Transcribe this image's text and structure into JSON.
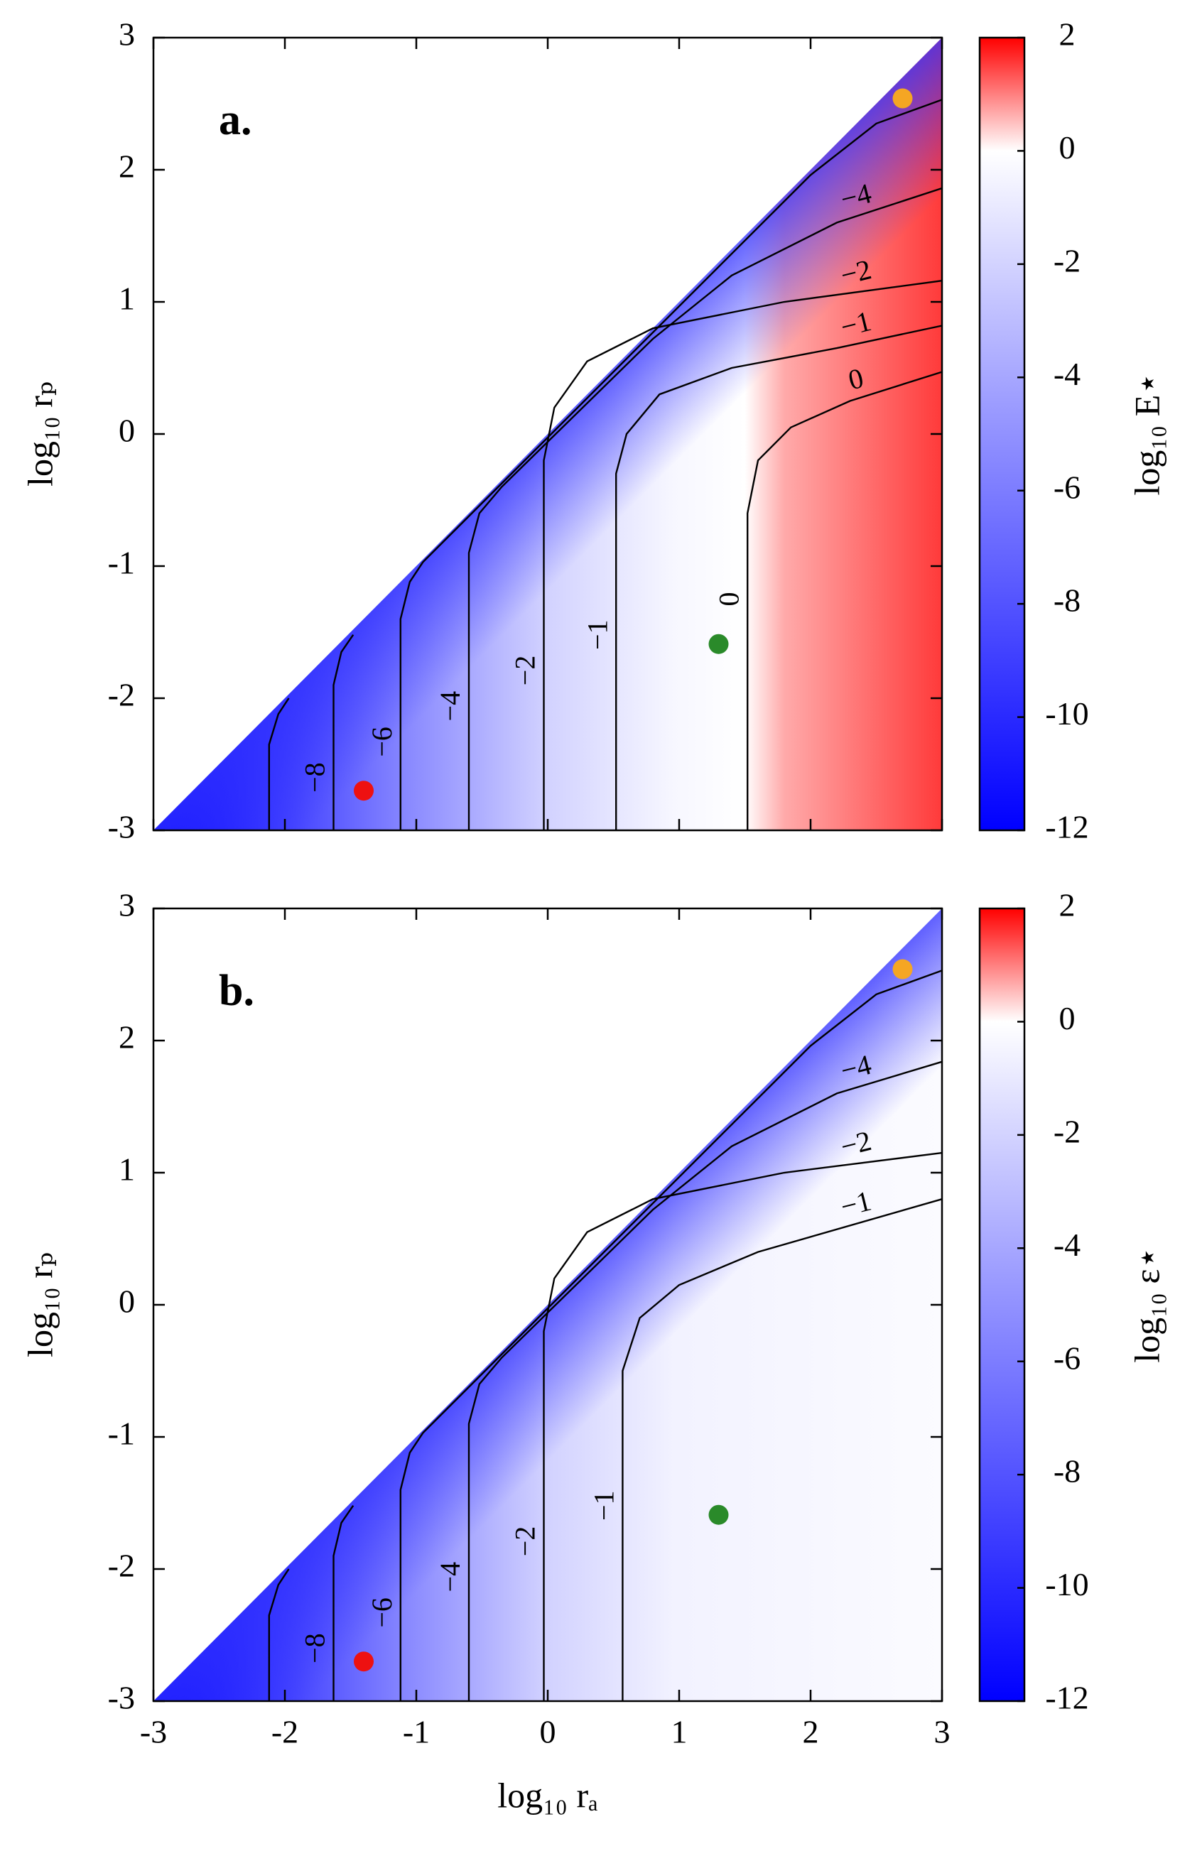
{
  "chart_data": [
    {
      "type": "heatmap",
      "panel_label": "a.",
      "ylabel": "log₁₀ rₚ",
      "show_xtick_labels": false,
      "xlim": [
        -3,
        3
      ],
      "ylim": [
        -3,
        3
      ],
      "xticks": [
        -3,
        -2,
        -1,
        0,
        1,
        2,
        3
      ],
      "yticks": [
        -3,
        -2,
        -1,
        0,
        1,
        2,
        3
      ],
      "colorbar": {
        "label": "log₁₀ E⋆",
        "lim": [
          -12,
          2
        ],
        "ticks": [
          2,
          0,
          -2,
          -4,
          -6,
          -8,
          -10,
          -12
        ]
      },
      "has_positive": true,
      "contours": [
        {
          "level": -10,
          "x": [
            -2.12,
            -2.12,
            -2.05,
            -1.97
          ],
          "y": [
            -3,
            -2.35,
            -2.12,
            -2.0
          ]
        },
        {
          "level": -8,
          "label": "−8",
          "x": [
            -1.63,
            -1.63,
            -1.57,
            -1.48
          ],
          "y": [
            -3,
            -1.9,
            -1.65,
            -1.52
          ]
        },
        {
          "level": -6,
          "label": "−6",
          "x": [
            -1.12,
            -1.12,
            -1.05,
            -0.95,
            2.0,
            2.5,
            3
          ],
          "y": [
            -3,
            -1.4,
            -1.12,
            -0.97,
            1.96,
            2.35,
            2.53
          ]
        },
        {
          "level": -4,
          "label": "−4",
          "right_label": true,
          "x": [
            -0.6,
            -0.6,
            -0.52,
            -0.35,
            0.8,
            1.4,
            2.2,
            3
          ],
          "y": [
            -3,
            -0.9,
            -0.6,
            -0.4,
            0.72,
            1.2,
            1.6,
            1.86
          ]
        },
        {
          "level": -2,
          "label": "−2",
          "right_label": true,
          "x": [
            -0.03,
            -0.03,
            0.05,
            0.3,
            0.8,
            1.8,
            3
          ],
          "y": [
            -3,
            -0.2,
            0.2,
            0.55,
            0.8,
            1.0,
            1.16
          ]
        },
        {
          "level": -1,
          "label": "−1",
          "right_label": true,
          "x": [
            0.52,
            0.52,
            0.6,
            0.85,
            1.4,
            2.2,
            3
          ],
          "y": [
            -3,
            -0.3,
            0.0,
            0.3,
            0.5,
            0.65,
            0.82
          ]
        },
        {
          "level": 0,
          "label": "0",
          "right_label": true,
          "x": [
            1.52,
            1.52,
            1.6,
            1.85,
            2.3,
            3
          ],
          "y": [
            -3,
            -0.6,
            -0.2,
            0.05,
            0.25,
            0.47
          ]
        }
      ],
      "points": {
        "x": [
          -1.4,
          1.3,
          2.7
        ],
        "y": [
          -2.7,
          -1.59,
          2.54
        ],
        "colors": [
          "#ee1111",
          "#2a8a2a",
          "#f5a623"
        ]
      }
    },
    {
      "type": "heatmap",
      "panel_label": "b.",
      "ylabel": "log₁₀ rₚ",
      "xlabel": "log₁₀ rₐ",
      "show_xtick_labels": true,
      "xlim": [
        -3,
        3
      ],
      "ylim": [
        -3,
        3
      ],
      "xticks": [
        -3,
        -2,
        -1,
        0,
        1,
        2,
        3
      ],
      "yticks": [
        -3,
        -2,
        -1,
        0,
        1,
        2,
        3
      ],
      "colorbar": {
        "label": "log₁₀ ε⋆",
        "lim": [
          -12,
          2
        ],
        "ticks": [
          2,
          0,
          -2,
          -4,
          -6,
          -8,
          -10,
          -12
        ]
      },
      "has_positive": false,
      "contours": [
        {
          "level": -10,
          "x": [
            -2.12,
            -2.12,
            -2.05,
            -1.97
          ],
          "y": [
            -3,
            -2.35,
            -2.12,
            -2.0
          ]
        },
        {
          "level": -8,
          "label": "−8",
          "x": [
            -1.63,
            -1.63,
            -1.57,
            -1.48
          ],
          "y": [
            -3,
            -1.9,
            -1.65,
            -1.52
          ]
        },
        {
          "level": -6,
          "label": "−6",
          "x": [
            -1.12,
            -1.12,
            -1.05,
            -0.95,
            2.0,
            2.5,
            3
          ],
          "y": [
            -3,
            -1.4,
            -1.12,
            -0.97,
            1.96,
            2.35,
            2.53
          ]
        },
        {
          "level": -4,
          "label": "−4",
          "right_label": true,
          "x": [
            -0.6,
            -0.6,
            -0.52,
            -0.35,
            0.8,
            1.4,
            2.2,
            3
          ],
          "y": [
            -3,
            -0.9,
            -0.6,
            -0.4,
            0.72,
            1.2,
            1.6,
            1.84
          ]
        },
        {
          "level": -2,
          "label": "−2",
          "right_label": true,
          "x": [
            -0.03,
            -0.03,
            0.05,
            0.3,
            0.8,
            1.8,
            3
          ],
          "y": [
            -3,
            -0.2,
            0.2,
            0.55,
            0.8,
            1.0,
            1.15
          ]
        },
        {
          "level": -1,
          "label": "−1",
          "right_label": true,
          "x": [
            0.57,
            0.57,
            0.7,
            1.0,
            1.6,
            3
          ],
          "y": [
            -3,
            -0.5,
            -0.1,
            0.15,
            0.4,
            0.8
          ]
        }
      ],
      "points": {
        "x": [
          -1.4,
          1.3,
          2.7
        ],
        "y": [
          -2.7,
          -1.59,
          2.54
        ],
        "colors": [
          "#ee1111",
          "#2a8a2a",
          "#f5a623"
        ]
      }
    }
  ]
}
